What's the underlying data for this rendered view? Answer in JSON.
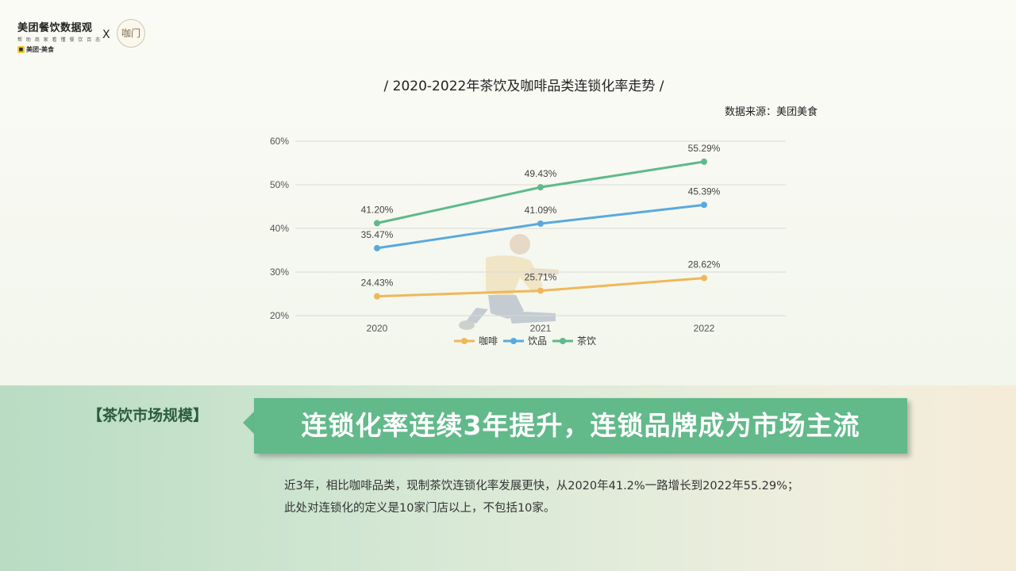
{
  "brand": {
    "title": "美团餐饮数据观",
    "subtitle": "帮 助 商 家 看 懂 餐 饮 百 态",
    "tag": "美团·美食",
    "cross": "X",
    "partner": "咖门"
  },
  "chart": {
    "title": "/ 2020-2022年茶饮及咖啡品类连锁化率走势 /",
    "source": "数据来源：美团美食"
  },
  "chart_data": {
    "type": "line",
    "x": [
      "2020",
      "2021",
      "2022"
    ],
    "ylim": [
      20,
      60
    ],
    "yticks": [
      "20%",
      "30%",
      "40%",
      "50%",
      "60%"
    ],
    "grid": true,
    "legend_position": "bottom",
    "series": [
      {
        "name": "咖啡",
        "values": [
          24.43,
          25.71,
          28.62
        ],
        "labels": [
          "24.43%",
          "25.71%",
          "28.62%"
        ],
        "color": "#f0b75a"
      },
      {
        "name": "饮品",
        "values": [
          35.47,
          41.09,
          45.39
        ],
        "labels": [
          "35.47%",
          "41.09%",
          "45.39%"
        ],
        "color": "#5aa9dc"
      },
      {
        "name": "茶饮",
        "values": [
          41.2,
          49.43,
          55.29
        ],
        "labels": [
          "41.20%",
          "49.43%",
          "55.29%"
        ],
        "color": "#5fb98a"
      }
    ]
  },
  "section": {
    "label": "【茶饮市场规模】",
    "banner": "连锁化率连续3年提升，连锁品牌成为市场主流"
  },
  "description": {
    "line1": "近3年，相比咖啡品类，现制茶饮连锁化率发展更快，从2020年41.2%一路增长到2022年55.29%；",
    "line2": "此处对连锁化的定义是10家门店以上，不包括10家。"
  }
}
